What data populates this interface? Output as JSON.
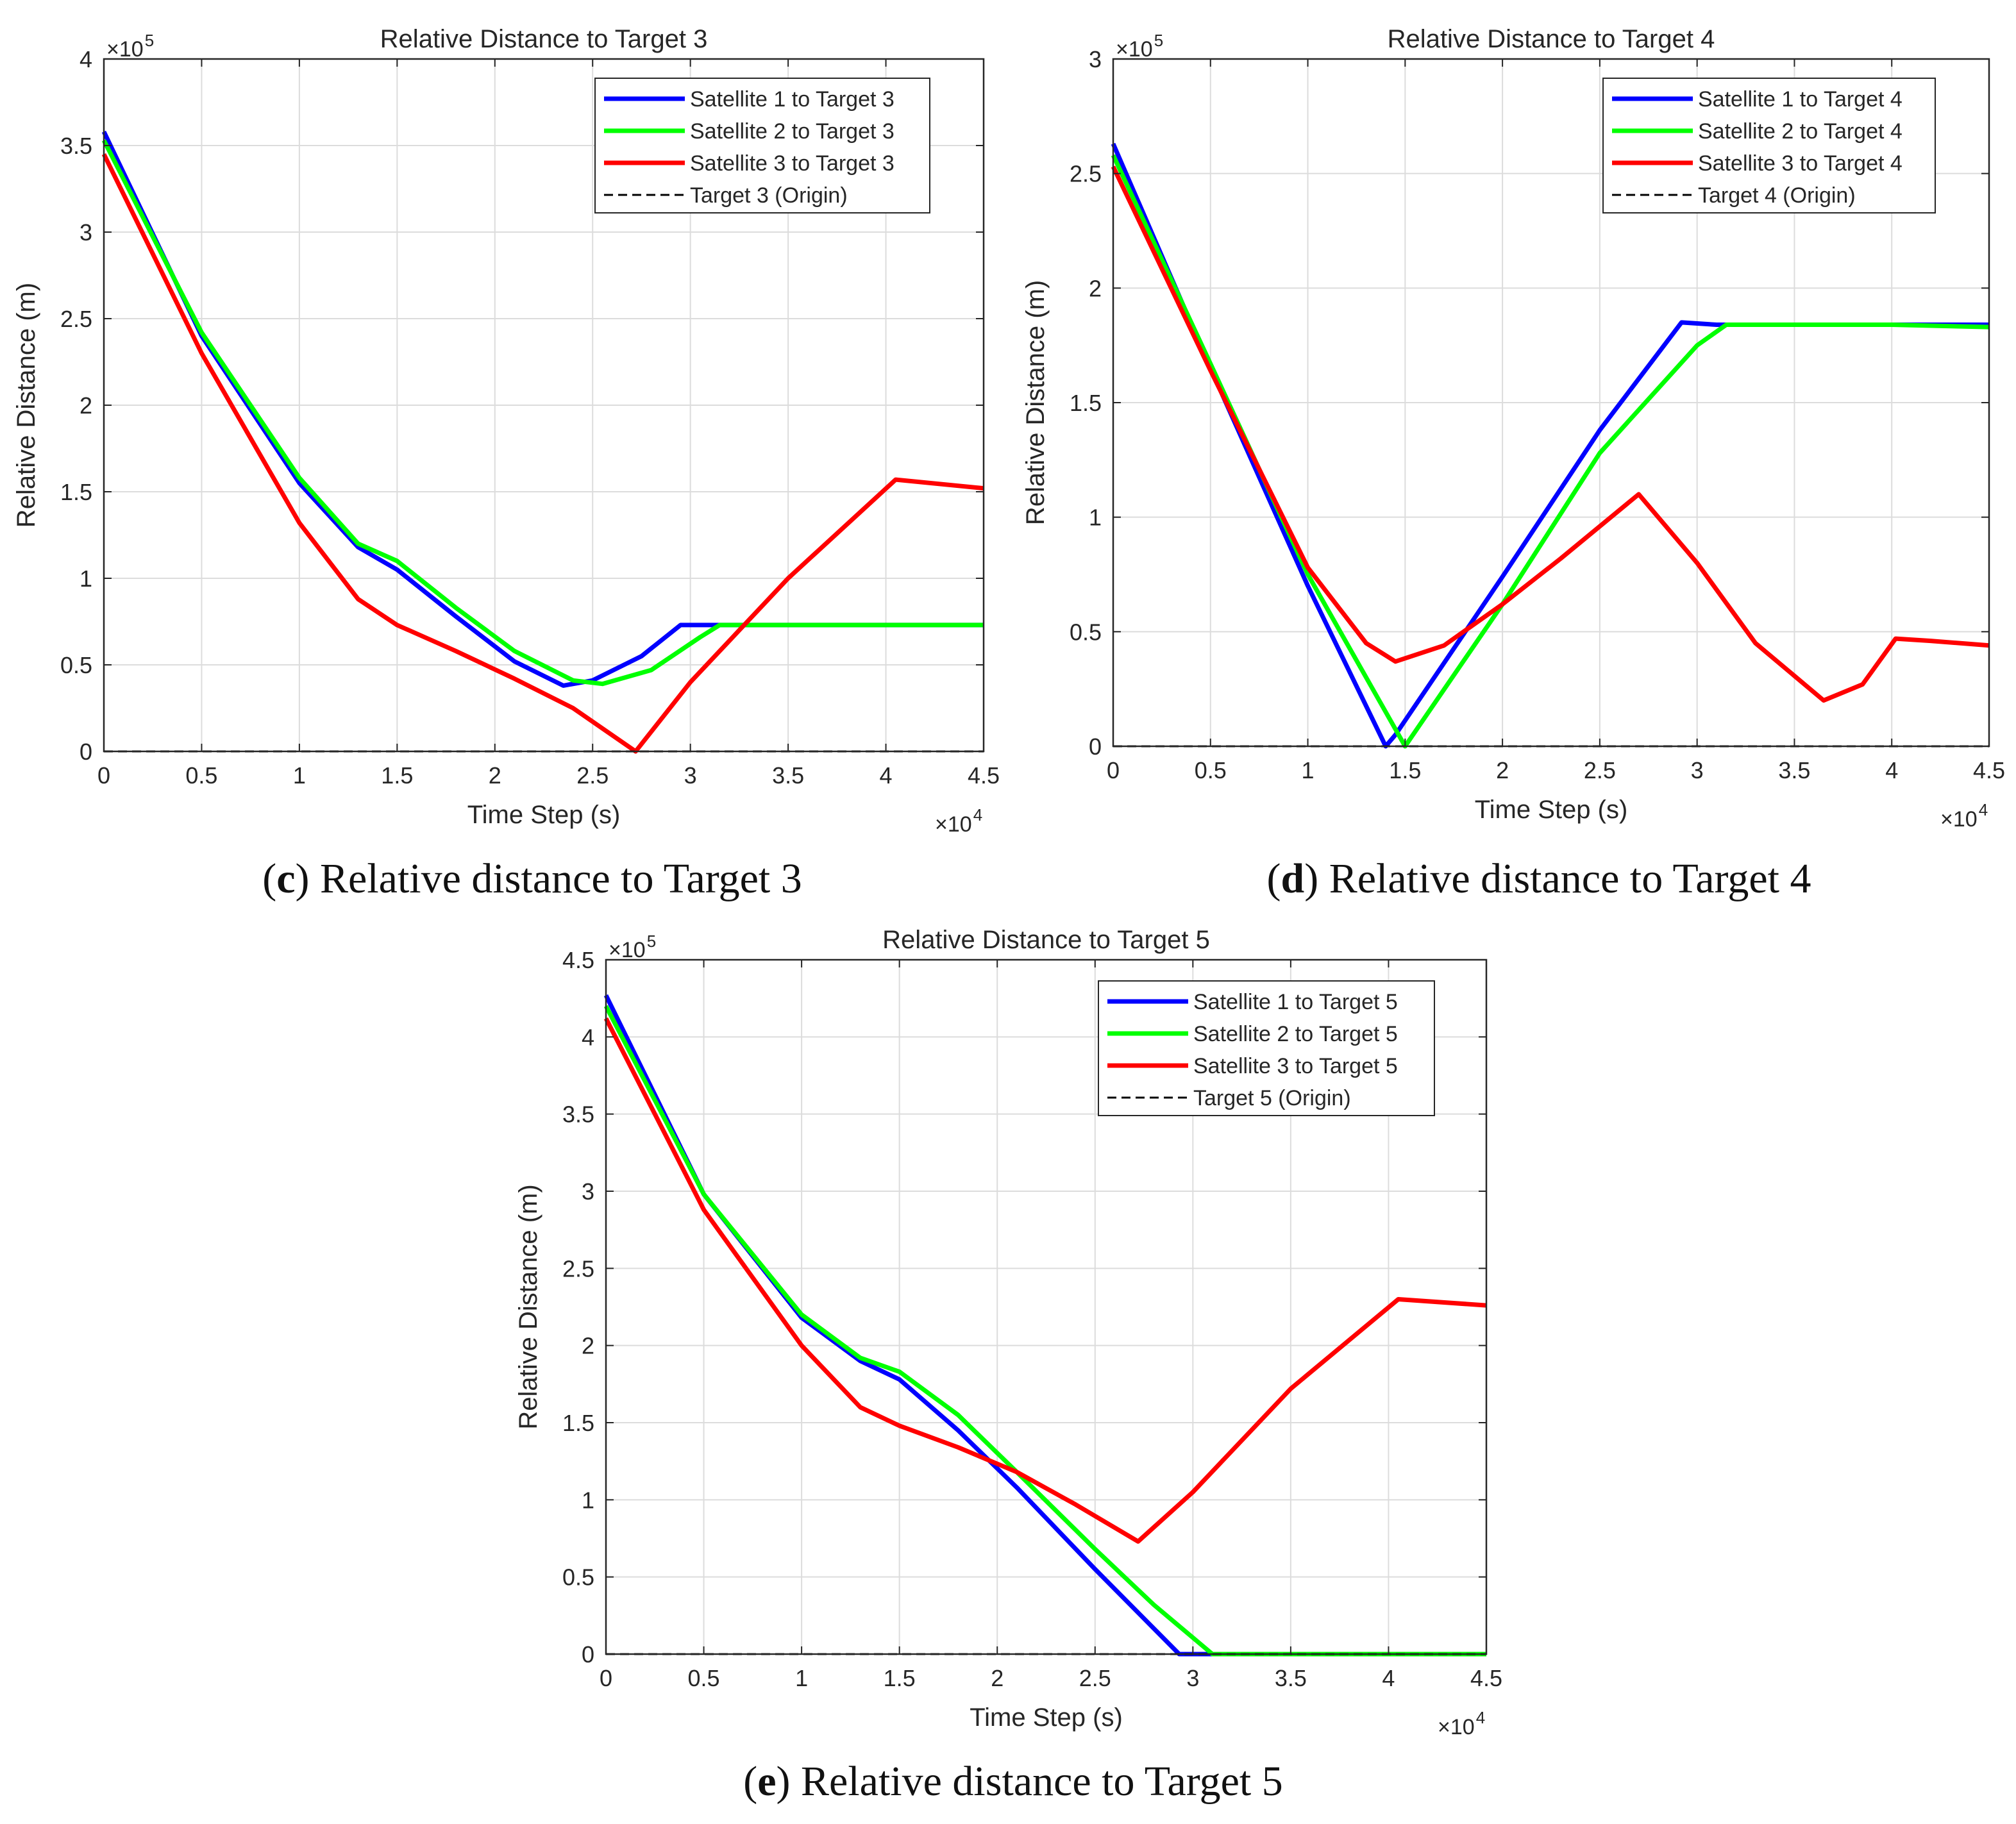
{
  "colors": {
    "satellite_1": "#0000ff",
    "satellite_2": "#00ff00",
    "satellite_3": "#ff0000",
    "target_origin": "#000000"
  },
  "chart_data": [
    {
      "type": "line",
      "panel": "c",
      "title": "Relative Distance to Target 3",
      "xlabel": "Time Step (s)",
      "ylabel": "Relative Distance (m)",
      "x_exponent_label": "×10",
      "x_exponent": "4",
      "y_exponent_label": "×10",
      "y_exponent": "5",
      "xlim": [
        0,
        4.5
      ],
      "ylim": [
        0,
        4
      ],
      "xticks": [
        0,
        0.5,
        1,
        1.5,
        2,
        2.5,
        3,
        3.5,
        4,
        4.5
      ],
      "xtick_labels": [
        "0",
        "0.5",
        "1",
        "1.5",
        "2",
        "2.5",
        "3",
        "3.5",
        "4",
        "4.5"
      ],
      "yticks": [
        0,
        0.5,
        1,
        1.5,
        2,
        2.5,
        3,
        3.5,
        4
      ],
      "ytick_labels": [
        "0",
        "0.5",
        "1",
        "1.5",
        "2",
        "2.5",
        "3",
        "3.5",
        "4"
      ],
      "grid": true,
      "legend_position": "top-right",
      "caption_letter": "c",
      "caption_text": ") Relative distance to Target 3",
      "series": [
        {
          "name": "Satellite 1 to Target 3",
          "color_key": "satellite_1",
          "style": "solid",
          "x": [
            0,
            0.5,
            1,
            1.3,
            1.5,
            1.8,
            2.1,
            2.35,
            2.5,
            2.75,
            2.95,
            3.15,
            3.5,
            4,
            4.5
          ],
          "y": [
            3.58,
            2.4,
            1.55,
            1.18,
            1.05,
            0.78,
            0.52,
            0.38,
            0.41,
            0.55,
            0.73,
            0.73,
            0.73,
            0.73,
            0.73
          ]
        },
        {
          "name": "Satellite 2 to Target 3",
          "color_key": "satellite_2",
          "style": "solid",
          "x": [
            0,
            0.5,
            1,
            1.3,
            1.5,
            1.8,
            2.1,
            2.4,
            2.55,
            2.8,
            3.05,
            3.15,
            3.5,
            4,
            4.5
          ],
          "y": [
            3.53,
            2.42,
            1.58,
            1.2,
            1.1,
            0.83,
            0.58,
            0.41,
            0.39,
            0.47,
            0.66,
            0.73,
            0.73,
            0.73,
            0.73
          ]
        },
        {
          "name": "Satellite 3 to Target 3",
          "color_key": "satellite_3",
          "style": "solid",
          "x": [
            0,
            0.5,
            1,
            1.3,
            1.5,
            1.8,
            2.1,
            2.4,
            2.72,
            3.0,
            3.5,
            4.05,
            4.5
          ],
          "y": [
            3.45,
            2.3,
            1.32,
            0.88,
            0.73,
            0.58,
            0.42,
            0.25,
            0.0,
            0.4,
            1.0,
            1.57,
            1.52
          ]
        },
        {
          "name": "Target 3 (Origin)",
          "color_key": "target_origin",
          "style": "dashed",
          "x": [
            0,
            4.5
          ],
          "y": [
            0,
            0
          ]
        }
      ]
    },
    {
      "type": "line",
      "panel": "d",
      "title": "Relative Distance to Target 4",
      "xlabel": "Time Step (s)",
      "ylabel": "Relative Distance (m)",
      "x_exponent_label": "×10",
      "x_exponent": "4",
      "y_exponent_label": "×10",
      "y_exponent": "5",
      "xlim": [
        0,
        4.5
      ],
      "ylim": [
        0,
        3
      ],
      "xticks": [
        0,
        0.5,
        1,
        1.5,
        2,
        2.5,
        3,
        3.5,
        4,
        4.5
      ],
      "xtick_labels": [
        "0",
        "0.5",
        "1",
        "1.5",
        "2",
        "2.5",
        "3",
        "3.5",
        "4",
        "4.5"
      ],
      "yticks": [
        0,
        0.5,
        1,
        1.5,
        2,
        2.5,
        3
      ],
      "ytick_labels": [
        "0",
        "0.5",
        "1",
        "1.5",
        "2",
        "2.5",
        "3"
      ],
      "grid": true,
      "legend_position": "top-right",
      "caption_letter": "d",
      "caption_text": ") Relative distance to Target 4",
      "series": [
        {
          "name": "Satellite 1 to Target 4",
          "color_key": "satellite_1",
          "style": "solid",
          "x": [
            0,
            0.5,
            1.0,
            1.4,
            1.45,
            2.0,
            2.5,
            2.92,
            3.1,
            3.5,
            4,
            4.5
          ],
          "y": [
            2.63,
            1.65,
            0.7,
            0.0,
            0.05,
            0.74,
            1.38,
            1.85,
            1.84,
            1.84,
            1.84,
            1.84
          ]
        },
        {
          "name": "Satellite 2 to Target 4",
          "color_key": "satellite_2",
          "style": "solid",
          "x": [
            0,
            0.5,
            1.0,
            1.5,
            2.0,
            2.5,
            3.0,
            3.15,
            3.5,
            4,
            4.5
          ],
          "y": [
            2.58,
            1.67,
            0.75,
            0.0,
            0.62,
            1.28,
            1.75,
            1.84,
            1.84,
            1.84,
            1.83
          ]
        },
        {
          "name": "Satellite 3 to Target 4",
          "color_key": "satellite_3",
          "style": "solid",
          "x": [
            0,
            0.5,
            1.0,
            1.3,
            1.45,
            1.7,
            2.0,
            2.3,
            2.7,
            3.0,
            3.3,
            3.65,
            3.85,
            4.02,
            4.2,
            4.5
          ],
          "y": [
            2.53,
            1.64,
            0.78,
            0.45,
            0.37,
            0.44,
            0.62,
            0.82,
            1.1,
            0.8,
            0.45,
            0.2,
            0.27,
            0.47,
            0.46,
            0.44
          ]
        },
        {
          "name": "Target 4 (Origin)",
          "color_key": "target_origin",
          "style": "dashed",
          "x": [
            0,
            4.5
          ],
          "y": [
            0,
            0
          ]
        }
      ]
    },
    {
      "type": "line",
      "panel": "e",
      "title": "Relative Distance to Target 5",
      "xlabel": "Time Step (s)",
      "ylabel": "Relative Distance (m)",
      "x_exponent_label": "×10",
      "x_exponent": "4",
      "y_exponent_label": "×10",
      "y_exponent": "5",
      "xlim": [
        0,
        4.5
      ],
      "ylim": [
        0,
        4.5
      ],
      "xticks": [
        0,
        0.5,
        1,
        1.5,
        2,
        2.5,
        3,
        3.5,
        4,
        4.5
      ],
      "xtick_labels": [
        "0",
        "0.5",
        "1",
        "1.5",
        "2",
        "2.5",
        "3",
        "3.5",
        "4",
        "4.5"
      ],
      "yticks": [
        0,
        0.5,
        1,
        1.5,
        2,
        2.5,
        3,
        3.5,
        4,
        4.5
      ],
      "ytick_labels": [
        "0",
        "0.5",
        "1",
        "1.5",
        "2",
        "2.5",
        "3",
        "3.5",
        "4",
        "4.5"
      ],
      "grid": true,
      "legend_position": "top-right",
      "caption_letter": "e",
      "caption_text": ") Relative distance to Target 5",
      "series": [
        {
          "name": "Satellite 1 to Target 5",
          "color_key": "satellite_1",
          "style": "solid",
          "x": [
            0,
            0.5,
            1,
            1.3,
            1.5,
            1.8,
            2.1,
            2.5,
            2.93,
            3.1,
            3.5,
            4,
            4.5
          ],
          "y": [
            4.27,
            2.98,
            2.18,
            1.9,
            1.78,
            1.45,
            1.08,
            0.55,
            0.0,
            0.0,
            0.0,
            0.0,
            0.0
          ]
        },
        {
          "name": "Satellite 2 to Target 5",
          "color_key": "satellite_2",
          "style": "solid",
          "x": [
            0,
            0.5,
            1,
            1.3,
            1.5,
            1.8,
            2.1,
            2.5,
            2.8,
            3.1,
            3.5,
            4,
            4.5
          ],
          "y": [
            4.2,
            2.98,
            2.2,
            1.92,
            1.83,
            1.55,
            1.18,
            0.68,
            0.32,
            0.0,
            0.0,
            0.0,
            0.0
          ]
        },
        {
          "name": "Satellite 3 to Target 5",
          "color_key": "satellite_3",
          "style": "solid",
          "x": [
            0,
            0.5,
            1,
            1.3,
            1.5,
            1.8,
            2.1,
            2.4,
            2.72,
            3.0,
            3.5,
            4.05,
            4.5
          ],
          "y": [
            4.12,
            2.88,
            2.0,
            1.6,
            1.48,
            1.34,
            1.18,
            0.97,
            0.73,
            1.05,
            1.72,
            2.3,
            2.26
          ]
        },
        {
          "name": "Target 5 (Origin)",
          "color_key": "target_origin",
          "style": "dashed",
          "x": [
            0,
            4.5
          ],
          "y": [
            0,
            0
          ]
        }
      ]
    }
  ]
}
